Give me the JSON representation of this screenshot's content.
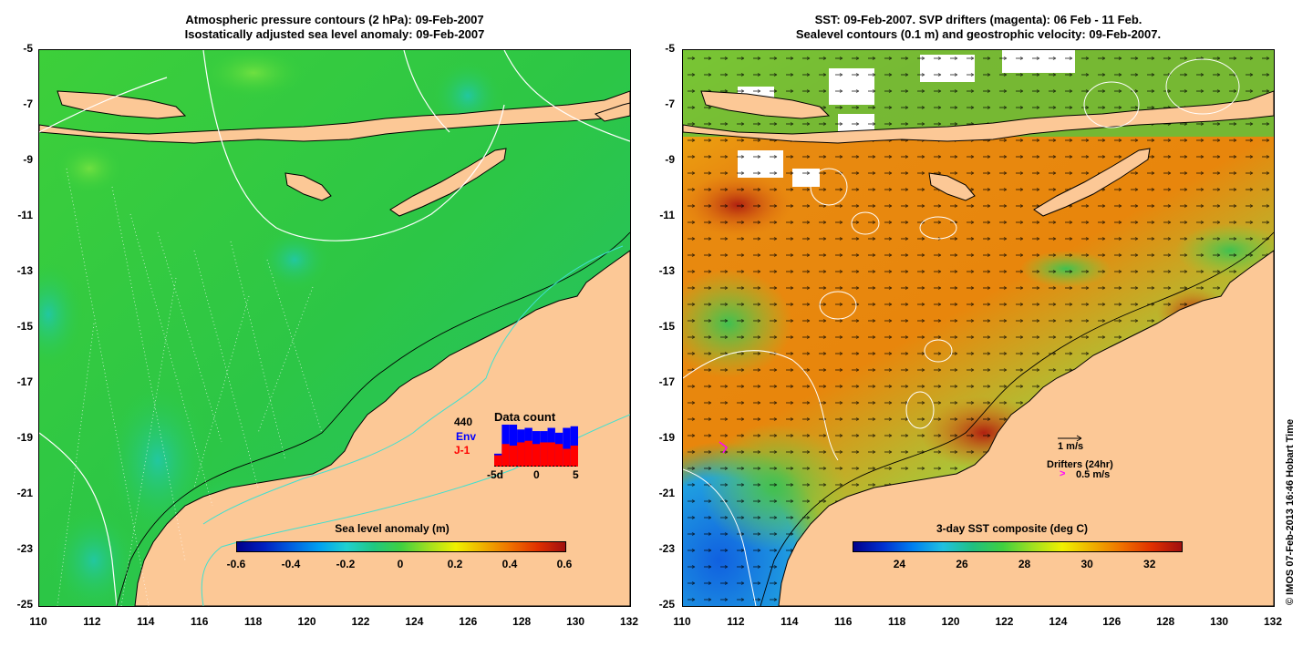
{
  "left_panel": {
    "title_line1": "Atmospheric pressure contours (2 hPa): 09-Feb-2007",
    "title_line2": "Isostatically adjusted sea level anomaly: 09-Feb-2007",
    "colorbar": {
      "title": "Sea level anomaly (m)",
      "tick_labels": [
        "-0.6",
        "-0.4",
        "-0.2",
        "0",
        "0.2",
        "0.4",
        "0.6"
      ],
      "range": [
        -0.6,
        0.6
      ]
    },
    "inset": {
      "title": "Data count",
      "count": "440",
      "env_label": "Env",
      "j1_label": "J-1",
      "x_labels": [
        "-5d",
        "0",
        "5"
      ],
      "env_values": [
        8,
        26,
        26,
        23,
        24,
        22,
        22,
        24,
        21,
        24,
        25
      ],
      "j1_values": [
        7,
        14,
        13,
        15,
        16,
        14,
        15,
        15,
        14,
        11,
        13
      ],
      "colors": {
        "env": "#0000ff",
        "j1": "#ff0000"
      }
    }
  },
  "right_panel": {
    "title_line1": "SST: 09-Feb-2007. SVP drifters (magenta): 06 Feb - 11 Feb.",
    "title_line2": "Sealevel contours (0.1 m) and geostrophic velocity: 09-Feb-2007.",
    "colorbar": {
      "title": "3-day SST composite (deg C)",
      "tick_labels": [
        "24",
        "26",
        "28",
        "30",
        "32"
      ],
      "range": [
        22.5,
        33
      ]
    },
    "legend": {
      "velocity_label": "1 m/s",
      "drifters_label": "Drifters (24hr)",
      "drifter_speed_label": "0.5 m/s",
      "drifter_color": "#ff00ff"
    }
  },
  "y_axis_labels": [
    "-5",
    "-7",
    "-9",
    "-11",
    "-13",
    "-15",
    "-17",
    "-19",
    "-21",
    "-23",
    "-25"
  ],
  "x_axis_labels": [
    "110",
    "112",
    "114",
    "116",
    "118",
    "120",
    "122",
    "124",
    "126",
    "128",
    "130",
    "132"
  ],
  "copyright": "© IMOS 07-Feb-2013 16:46 Hobart Time",
  "colors": {
    "land": "#fcc896",
    "ocean_green": "#2ecc3c",
    "sst_orange": "#e8820a",
    "contour_white": "#ffffff",
    "contour_cyan": "#40e0d0"
  }
}
